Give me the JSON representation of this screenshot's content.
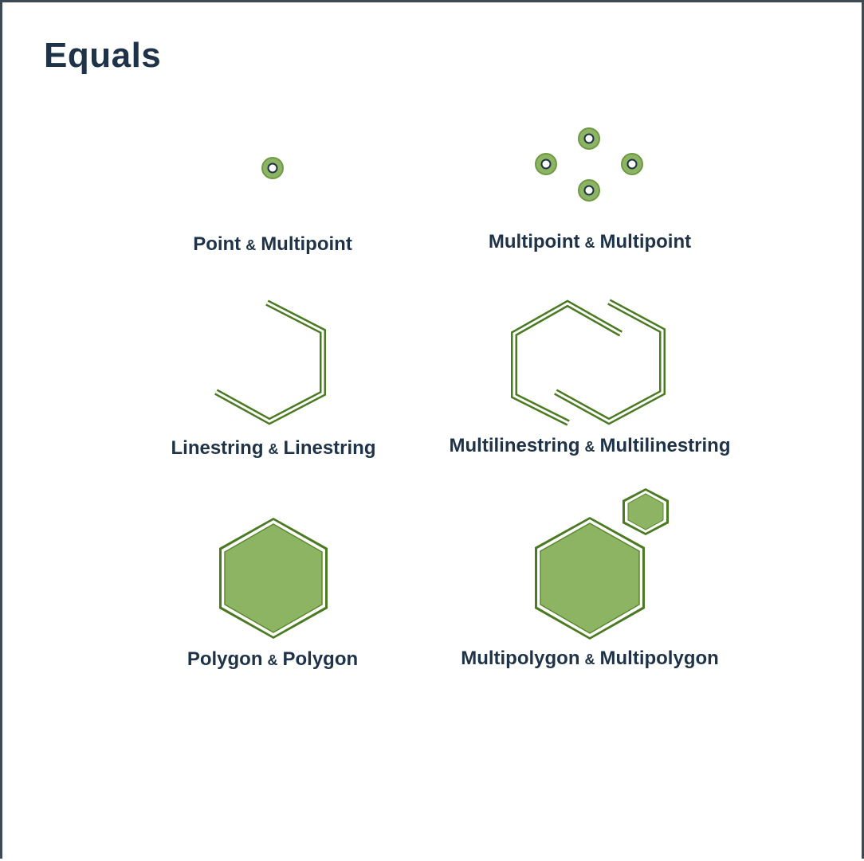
{
  "title": "Equals",
  "amp": "&",
  "colors": {
    "fill": "#8db463",
    "stroke": "#4a7a22",
    "text": "#1f3348",
    "border": "#3c4a55"
  },
  "pairs": [
    {
      "left": "Point",
      "right": "Multipoint"
    },
    {
      "left": "Multipoint",
      "right": "Multipoint"
    },
    {
      "left": "Linestring",
      "right": "Linestring"
    },
    {
      "left": "Multilinestring",
      "right": "Multilinestring"
    },
    {
      "left": "Polygon",
      "right": "Polygon"
    },
    {
      "left": "Multipolygon",
      "right": "Multipolygon"
    }
  ]
}
